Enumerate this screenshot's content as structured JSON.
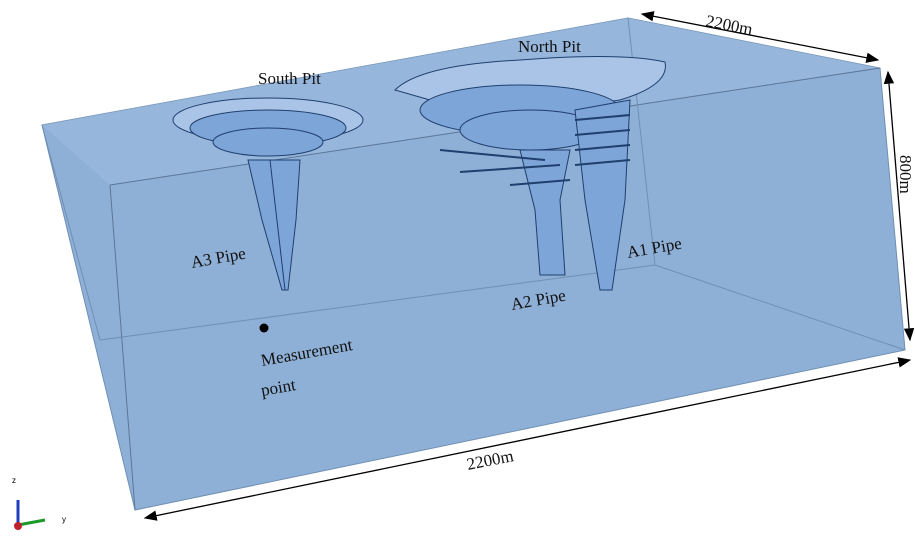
{
  "labels": {
    "south_pit": "South Pit",
    "north_pit": "North Pit",
    "a3_pipe": "A3 Pipe",
    "a2_pipe": "A2 Pipe",
    "a1_pipe": "A1 Pipe",
    "measurement_line1": "Measurement",
    "measurement_line2": "point"
  },
  "dimensions": {
    "top": "2200m",
    "bottom": "2200m",
    "right": "800m"
  },
  "axes": {
    "z": "z",
    "y": "y"
  }
}
